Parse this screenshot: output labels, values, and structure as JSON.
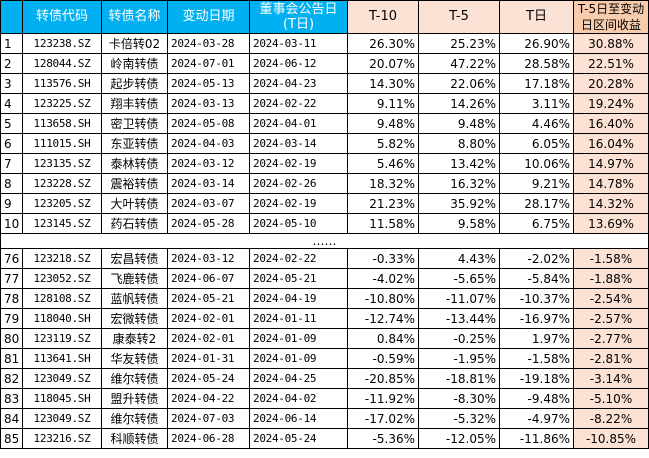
{
  "headers": {
    "idx": "",
    "code": "转债代码",
    "name": "转债名称",
    "change_date": "变动日期",
    "board_date": "董事会公告日\n(T日)",
    "t10": "T-10",
    "t5": "T-5",
    "t": "T日",
    "ret": "T-5日至变动日区间收益"
  },
  "separator": "……",
  "rows_top": [
    {
      "i": "1",
      "code": "123238.SZ",
      "name": "卡倍转02",
      "change_date": "2024-03-28",
      "board_date": "2024-03-11",
      "t10": "26.30%",
      "t5": "25.23%",
      "t": "26.90%",
      "ret": "30.88%"
    },
    {
      "i": "2",
      "code": "128044.SZ",
      "name": "岭南转债",
      "change_date": "2024-07-01",
      "board_date": "2024-06-12",
      "t10": "20.07%",
      "t5": "47.22%",
      "t": "28.58%",
      "ret": "22.51%"
    },
    {
      "i": "3",
      "code": "113576.SH",
      "name": "起步转债",
      "change_date": "2024-05-13",
      "board_date": "2024-04-23",
      "t10": "14.30%",
      "t5": "22.06%",
      "t": "17.18%",
      "ret": "20.28%"
    },
    {
      "i": "4",
      "code": "123225.SZ",
      "name": "翔丰转债",
      "change_date": "2024-03-13",
      "board_date": "2024-02-22",
      "t10": "9.11%",
      "t5": "14.26%",
      "t": "3.11%",
      "ret": "19.24%"
    },
    {
      "i": "5",
      "code": "113658.SH",
      "name": "密卫转债",
      "change_date": "2024-05-08",
      "board_date": "2024-04-01",
      "t10": "9.48%",
      "t5": "9.48%",
      "t": "4.46%",
      "ret": "16.40%"
    },
    {
      "i": "6",
      "code": "111015.SH",
      "name": "东亚转债",
      "change_date": "2024-04-03",
      "board_date": "2024-03-14",
      "t10": "5.82%",
      "t5": "8.80%",
      "t": "6.05%",
      "ret": "16.04%"
    },
    {
      "i": "7",
      "code": "123135.SZ",
      "name": "泰林转债",
      "change_date": "2024-03-12",
      "board_date": "2024-02-19",
      "t10": "5.46%",
      "t5": "13.42%",
      "t": "10.06%",
      "ret": "14.97%"
    },
    {
      "i": "8",
      "code": "123228.SZ",
      "name": "震裕转债",
      "change_date": "2024-03-14",
      "board_date": "2024-02-26",
      "t10": "18.32%",
      "t5": "16.32%",
      "t": "9.21%",
      "ret": "14.78%"
    },
    {
      "i": "9",
      "code": "123205.SZ",
      "name": "大叶转债",
      "change_date": "2024-03-07",
      "board_date": "2024-02-19",
      "t10": "21.23%",
      "t5": "35.92%",
      "t": "28.17%",
      "ret": "14.32%"
    },
    {
      "i": "10",
      "code": "123145.SZ",
      "name": "药石转债",
      "change_date": "2024-05-28",
      "board_date": "2024-05-10",
      "t10": "11.58%",
      "t5": "9.58%",
      "t": "6.75%",
      "ret": "13.69%"
    }
  ],
  "rows_bottom": [
    {
      "i": "76",
      "code": "123218.SZ",
      "name": "宏昌转债",
      "change_date": "2024-03-12",
      "board_date": "2024-02-22",
      "t10": "-0.33%",
      "t5": "4.43%",
      "t": "-2.02%",
      "ret": "-1.58%"
    },
    {
      "i": "77",
      "code": "123052.SZ",
      "name": "飞鹿转债",
      "change_date": "2024-06-07",
      "board_date": "2024-05-21",
      "t10": "-4.02%",
      "t5": "-5.65%",
      "t": "-5.84%",
      "ret": "-1.88%"
    },
    {
      "i": "78",
      "code": "128108.SZ",
      "name": "蓝帆转债",
      "change_date": "2024-05-21",
      "board_date": "2024-04-19",
      "t10": "-10.80%",
      "t5": "-11.07%",
      "t": "-10.37%",
      "ret": "-2.54%"
    },
    {
      "i": "79",
      "code": "118040.SH",
      "name": "宏微转债",
      "change_date": "2024-02-01",
      "board_date": "2024-01-11",
      "t10": "-12.74%",
      "t5": "-13.44%",
      "t": "-16.97%",
      "ret": "-2.57%"
    },
    {
      "i": "80",
      "code": "123119.SZ",
      "name": "康泰转2",
      "change_date": "2024-02-01",
      "board_date": "2024-01-09",
      "t10": "0.84%",
      "t5": "-0.25%",
      "t": "1.97%",
      "ret": "-2.77%"
    },
    {
      "i": "81",
      "code": "113641.SH",
      "name": "华友转债",
      "change_date": "2024-01-31",
      "board_date": "2024-01-09",
      "t10": "-0.59%",
      "t5": "-1.95%",
      "t": "-1.58%",
      "ret": "-2.81%"
    },
    {
      "i": "82",
      "code": "123049.SZ",
      "name": "维尔转债",
      "change_date": "2024-05-24",
      "board_date": "2024-04-25",
      "t10": "-20.85%",
      "t5": "-18.81%",
      "t": "-19.18%",
      "ret": "-3.14%"
    },
    {
      "i": "83",
      "code": "118045.SH",
      "name": "盟升转债",
      "change_date": "2024-04-22",
      "board_date": "2024-04-02",
      "t10": "-11.92%",
      "t5": "-8.30%",
      "t": "-9.48%",
      "ret": "-5.10%"
    },
    {
      "i": "84",
      "code": "123049.SZ",
      "name": "维尔转债",
      "change_date": "2024-07-03",
      "board_date": "2024-06-14",
      "t10": "-17.02%",
      "t5": "-5.32%",
      "t": "-4.97%",
      "ret": "-8.22%"
    },
    {
      "i": "85",
      "code": "123216.SZ",
      "name": "科顺转债",
      "change_date": "2024-06-28",
      "board_date": "2024-05-24",
      "t10": "-5.36%",
      "t5": "-12.05%",
      "t": "-11.86%",
      "ret": "-10.85%"
    }
  ],
  "colors": {
    "header_blue": "#00b0f0",
    "header_peach": "#fbe2d5",
    "header_ret": "#f8cbad",
    "cell_peach": "#fbe2d5"
  }
}
